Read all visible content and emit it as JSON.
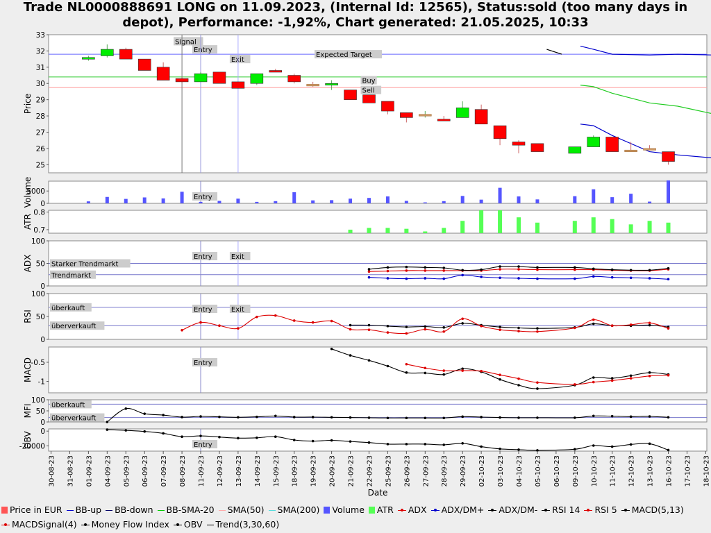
{
  "title": "Trade NL0000888691 LONG on 11.09.2023, (Internal Id: 12565), Status:sold (too many days in depot), Performance: -1,92%, Chart generated: 21.05.2025, 10:33",
  "chart_data": {
    "type": "candlestick-multipanel",
    "xlabel": "Date",
    "dates": [
      "30-08-23",
      "31-08-23",
      "01-09-23",
      "04-09-23",
      "05-09-23",
      "06-09-23",
      "07-09-23",
      "08-09-23",
      "11-09-23",
      "12-09-23",
      "13-09-23",
      "14-09-23",
      "15-09-23",
      "18-09-23",
      "19-09-23",
      "20-09-23",
      "21-09-23",
      "22-09-23",
      "25-09-23",
      "26-09-23",
      "27-09-23",
      "28-09-23",
      "29-09-23",
      "02-10-23",
      "03-10-23",
      "04-10-23",
      "05-10-23",
      "06-10-23",
      "09-10-23",
      "10-10-23",
      "11-10-23",
      "12-10-23",
      "13-10-23",
      "16-10-23",
      "17-10-23",
      "18-10-23"
    ],
    "price": {
      "ylabel": "Price",
      "ylim": [
        24.5,
        33
      ],
      "yticks": [
        25,
        26,
        27,
        28,
        29,
        30,
        31,
        32,
        33
      ],
      "candles": [
        {
          "d": "01-09-23",
          "o": 31.5,
          "c": 31.6,
          "h": 31.7,
          "l": 31.4
        },
        {
          "d": "04-09-23",
          "o": 31.7,
          "c": 32.1,
          "h": 32.4,
          "l": 31.6
        },
        {
          "d": "05-09-23",
          "o": 32.1,
          "c": 31.5,
          "h": 32.2,
          "l": 31.5
        },
        {
          "d": "06-09-23",
          "o": 31.5,
          "c": 30.8,
          "h": 31.5,
          "l": 30.8
        },
        {
          "d": "07-09-23",
          "o": 31.0,
          "c": 30.2,
          "h": 31.3,
          "l": 30.2
        },
        {
          "d": "08-09-23",
          "o": 30.3,
          "c": 30.1,
          "h": 30.4,
          "l": 30.0
        },
        {
          "d": "11-09-23",
          "o": 30.1,
          "c": 30.6,
          "h": 30.7,
          "l": 30.1
        },
        {
          "d": "12-09-23",
          "o": 30.7,
          "c": 30.0,
          "h": 30.7,
          "l": 30.0
        },
        {
          "d": "13-09-23",
          "o": 30.1,
          "c": 29.7,
          "h": 30.1,
          "l": 29.7
        },
        {
          "d": "14-09-23",
          "o": 30.0,
          "c": 30.6,
          "h": 30.6,
          "l": 29.9
        },
        {
          "d": "15-09-23",
          "o": 30.8,
          "c": 30.7,
          "h": 30.9,
          "l": 30.7
        },
        {
          "d": "18-09-23",
          "o": 30.5,
          "c": 30.1,
          "h": 30.6,
          "l": 30.0
        },
        {
          "d": "19-09-23",
          "o": 29.95,
          "c": 29.9,
          "h": 30.1,
          "l": 29.8
        },
        {
          "d": "20-09-23",
          "o": 29.9,
          "c": 30.0,
          "h": 30.2,
          "l": 29.6
        },
        {
          "d": "21-09-23",
          "o": 29.6,
          "c": 29.0,
          "h": 29.6,
          "l": 29.0
        },
        {
          "d": "22-09-23",
          "o": 29.3,
          "c": 28.8,
          "h": 29.3,
          "l": 28.8
        },
        {
          "d": "25-09-23",
          "o": 28.9,
          "c": 28.3,
          "h": 28.9,
          "l": 28.1
        },
        {
          "d": "26-09-23",
          "o": 28.2,
          "c": 27.9,
          "h": 28.2,
          "l": 27.6
        },
        {
          "d": "27-09-23",
          "o": 28.05,
          "c": 28.1,
          "h": 28.3,
          "l": 27.9
        },
        {
          "d": "28-09-23",
          "o": 27.8,
          "c": 27.7,
          "h": 28.0,
          "l": 27.7
        },
        {
          "d": "29-09-23",
          "o": 27.9,
          "c": 28.5,
          "h": 28.9,
          "l": 27.9
        },
        {
          "d": "02-10-23",
          "o": 28.4,
          "c": 27.5,
          "h": 28.7,
          "l": 27.5
        },
        {
          "d": "03-10-23",
          "o": 27.4,
          "c": 26.6,
          "h": 27.4,
          "l": 26.2
        },
        {
          "d": "04-10-23",
          "o": 26.4,
          "c": 26.2,
          "h": 26.5,
          "l": 25.7
        },
        {
          "d": "05-10-23",
          "o": 26.3,
          "c": 25.8,
          "h": 26.3,
          "l": 25.8
        },
        {
          "d": "09-10-23",
          "o": 25.7,
          "c": 26.1,
          "h": 26.1,
          "l": 25.7
        },
        {
          "d": "10-10-23",
          "o": 26.1,
          "c": 26.7,
          "h": 26.8,
          "l": 26.1
        },
        {
          "d": "11-10-23",
          "o": 26.7,
          "c": 25.8,
          "h": 26.7,
          "l": 25.8
        },
        {
          "d": "12-10-23",
          "o": 25.9,
          "c": 25.8,
          "h": 26.4,
          "l": 25.8
        },
        {
          "d": "13-10-23",
          "o": 26.0,
          "c": 25.95,
          "h": 26.2,
          "l": 25.9
        },
        {
          "d": "16-10-23",
          "o": 25.8,
          "c": 25.2,
          "h": 25.8,
          "l": 25.0
        }
      ],
      "bb_up": [
        [
          28.3,
          32.3
        ],
        [
          29,
          32.1
        ],
        [
          30,
          31.8
        ],
        [
          32,
          31.75
        ],
        [
          33.5,
          31.8
        ],
        [
          35.5,
          31.75
        ],
        [
          37,
          31.55
        ],
        [
          38.5,
          31.45
        ],
        [
          39.5,
          31.0
        ],
        [
          40.5,
          30.6
        ]
      ],
      "bb_down": [
        [
          28.3,
          27.5
        ],
        [
          29,
          27.4
        ],
        [
          30,
          26.8
        ],
        [
          32,
          25.8
        ],
        [
          33.5,
          25.6
        ],
        [
          35.5,
          25.4
        ],
        [
          37,
          24.8
        ],
        [
          38.5,
          24.6
        ],
        [
          39.5,
          24.5
        ],
        [
          40.5,
          24.3
        ]
      ],
      "bb_sma20": [
        [
          28.3,
          29.9
        ],
        [
          29,
          29.8
        ],
        [
          30,
          29.4
        ],
        [
          32,
          28.8
        ],
        [
          33.5,
          28.6
        ],
        [
          35.5,
          28.1
        ],
        [
          37,
          27.8
        ],
        [
          38.5,
          27.5
        ]
      ],
      "trend": [
        [
          26.5,
          32.1
        ],
        [
          27.3,
          31.8
        ]
      ],
      "hlines": [
        {
          "y": 31.8,
          "label": "Expected Target",
          "color": "#6666ff"
        },
        {
          "y": 30.4,
          "color": "#33cc33"
        },
        {
          "y": 29.75,
          "color": "#ff9999"
        }
      ],
      "markers": [
        {
          "label": "Signal",
          "x": "08-09-23",
          "y": 32.6
        },
        {
          "label": "Entry",
          "x": "11-09-23",
          "y": 32.1
        },
        {
          "label": "Exit",
          "x": "13-09-23",
          "y": 31.5
        },
        {
          "label": "Buy",
          "x": "22-09-23",
          "y": 30.2
        },
        {
          "label": "Sell",
          "x": "22-09-23",
          "y": 29.6
        }
      ]
    },
    "volume": {
      "ylabel": "Volume",
      "ylim": [
        0,
        9000
      ],
      "yticks": [
        0,
        5000
      ],
      "values": [
        0,
        0,
        800,
        2600,
        1800,
        2400,
        2000,
        4700,
        600,
        1000,
        1900,
        600,
        900,
        4500,
        1200,
        1300,
        1900,
        2200,
        2800,
        1000,
        400,
        900,
        3000,
        1500,
        6300,
        2800,
        1600,
        0,
        2900,
        5700,
        2500,
        3900,
        700,
        9300,
        0,
        0
      ],
      "markers": [
        {
          "label": "Entry",
          "x": "11-09-23"
        }
      ]
    },
    "atr": {
      "ylabel": "ATR",
      "ylim": [
        0.68,
        0.81
      ],
      "yticks": [
        0.7,
        0.8
      ],
      "values": [
        null,
        null,
        null,
        null,
        null,
        null,
        null,
        null,
        null,
        null,
        null,
        null,
        null,
        null,
        null,
        null,
        0.7,
        0.71,
        0.71,
        0.705,
        0.69,
        0.71,
        0.75,
        0.81,
        0.81,
        0.77,
        0.74,
        null,
        0.75,
        0.77,
        0.76,
        0.73,
        0.75,
        0.74,
        null,
        null
      ]
    },
    "adx": {
      "ylabel": "ADX",
      "ylim": [
        0,
        100
      ],
      "yticks": [
        0,
        50,
        100
      ],
      "hlines": [
        {
          "y": 50,
          "label": "Starker Trendmarkt"
        },
        {
          "y": 25,
          "label": "Trendmarkt"
        }
      ],
      "series": [
        {
          "name": "ADX",
          "color": "#dd0000",
          "values": [
            null,
            null,
            null,
            null,
            null,
            null,
            null,
            null,
            null,
            null,
            null,
            null,
            null,
            null,
            null,
            null,
            null,
            32,
            33,
            34,
            34,
            34,
            34,
            34,
            37,
            37,
            36,
            null,
            36,
            36,
            35,
            34,
            34,
            37,
            null,
            null
          ]
        },
        {
          "name": "ADX/DM+",
          "color": "#0000cc",
          "values": [
            null,
            null,
            null,
            null,
            null,
            null,
            null,
            null,
            null,
            null,
            null,
            null,
            null,
            null,
            null,
            null,
            null,
            19,
            17,
            16,
            17,
            16,
            24,
            20,
            18,
            17,
            16,
            null,
            16,
            21,
            19,
            18,
            17,
            15,
            null,
            null
          ]
        },
        {
          "name": "ADX/DM-",
          "color": "#000000",
          "values": [
            null,
            null,
            null,
            null,
            null,
            null,
            null,
            null,
            null,
            null,
            null,
            null,
            null,
            null,
            null,
            null,
            null,
            37,
            41,
            42,
            41,
            40,
            35,
            36,
            43,
            43,
            41,
            null,
            41,
            38,
            36,
            35,
            35,
            39,
            null,
            null
          ]
        }
      ],
      "markers": [
        {
          "label": "Entry",
          "x": "11-09-23"
        },
        {
          "label": "Exit",
          "x": "13-09-23"
        }
      ]
    },
    "rsi": {
      "ylabel": "RSI",
      "ylim": [
        0,
        100
      ],
      "yticks": [
        0,
        50,
        100
      ],
      "hlines": [
        {
          "y": 70,
          "label": "überkauft"
        },
        {
          "y": 30,
          "label": "überverkauft"
        }
      ],
      "series": [
        {
          "name": "RSI 14",
          "color": "#000000",
          "values": [
            null,
            null,
            null,
            null,
            null,
            null,
            null,
            null,
            null,
            null,
            null,
            null,
            null,
            null,
            null,
            null,
            31,
            31,
            29,
            27,
            28,
            26,
            35,
            31,
            27,
            25,
            24,
            null,
            26,
            34,
            30,
            30,
            31,
            27,
            null,
            null
          ]
        },
        {
          "name": "RSI 5",
          "color": "#dd0000",
          "values": [
            null,
            null,
            null,
            null,
            null,
            null,
            null,
            20,
            37,
            30,
            24,
            49,
            52,
            41,
            37,
            40,
            22,
            21,
            15,
            13,
            22,
            17,
            45,
            29,
            21,
            18,
            17,
            null,
            25,
            43,
            30,
            32,
            36,
            24,
            null,
            null
          ]
        }
      ],
      "markers": [
        {
          "label": "Entry",
          "x": "11-09-23"
        },
        {
          "label": "Exit",
          "x": "13-09-23"
        }
      ]
    },
    "macd": {
      "ylabel": "MACD",
      "ylim": [
        -1.3,
        -0.1
      ],
      "yticks": [
        -1,
        -0.5
      ],
      "series": [
        {
          "name": "MACD(5,13)",
          "color": "#000000",
          "values": [
            null,
            null,
            null,
            null,
            null,
            null,
            null,
            null,
            null,
            null,
            null,
            null,
            null,
            null,
            null,
            -0.15,
            -0.32,
            -0.45,
            -0.6,
            -0.77,
            -0.78,
            -0.82,
            -0.67,
            -0.75,
            -0.95,
            -1.1,
            -1.19,
            null,
            -1.1,
            -0.9,
            -0.92,
            -0.85,
            -0.77,
            -0.82,
            null,
            null
          ]
        },
        {
          "name": "MACDSignal(4)",
          "color": "#dd0000",
          "values": [
            null,
            null,
            null,
            null,
            null,
            null,
            null,
            null,
            null,
            null,
            null,
            null,
            null,
            null,
            null,
            null,
            null,
            null,
            null,
            -0.55,
            -0.65,
            -0.72,
            -0.72,
            -0.73,
            -0.83,
            -0.93,
            -1.03,
            null,
            -1.08,
            -1.02,
            -0.98,
            -0.92,
            -0.86,
            -0.84,
            null,
            null
          ]
        }
      ],
      "markers": [
        {
          "label": "Entry",
          "x": "11-09-23"
        }
      ]
    },
    "mfi": {
      "ylabel": "MFI",
      "ylim": [
        0,
        100
      ],
      "yticks": [
        0,
        50,
        100
      ],
      "hlines": [
        {
          "y": 80,
          "label": "überkauft"
        },
        {
          "y": 20,
          "label": "überverkauft"
        }
      ],
      "series": [
        {
          "name": "Money Flow Index",
          "color": "#000000",
          "values": [
            null,
            null,
            null,
            0,
            60,
            37,
            31,
            22,
            25,
            23,
            21,
            23,
            27,
            22,
            22,
            21,
            20,
            19,
            18,
            18,
            18,
            18,
            24,
            22,
            20,
            19,
            19,
            null,
            19,
            27,
            26,
            24,
            25,
            21,
            null,
            null
          ]
        }
      ]
    },
    "obv": {
      "ylabel": "OBV",
      "ylim": [
        -27000,
        3000
      ],
      "yticks": [
        -20000,
        0
      ],
      "series": [
        {
          "name": "OBV",
          "color": "#000000",
          "values": [
            null,
            null,
            null,
            2000,
            1000,
            -500,
            -3000,
            -7500,
            -6500,
            -8000,
            -9500,
            -9000,
            -7500,
            -12000,
            -13500,
            -12500,
            -14000,
            -15500,
            -17500,
            -17500,
            -17500,
            -18500,
            -16500,
            -21000,
            -24000,
            -25000,
            -26000,
            null,
            -24500,
            -19500,
            -21000,
            -18000,
            -17000,
            -25500,
            null,
            null
          ]
        }
      ],
      "markers": [
        {
          "label": "Entry",
          "x": "11-09-23"
        }
      ]
    },
    "legend": [
      {
        "label": "Price in EUR",
        "color": "#ff5555",
        "kind": "swatch"
      },
      {
        "label": "BB-up",
        "color": "#0000cc",
        "kind": "line"
      },
      {
        "label": "BB-down",
        "color": "#000066",
        "kind": "line"
      },
      {
        "label": "BB-SMA-20",
        "color": "#00cc00",
        "kind": "line"
      },
      {
        "label": "SMA(50)",
        "color": "#ffaaaa",
        "kind": "line"
      },
      {
        "label": "SMA(200)",
        "color": "#55dddd",
        "kind": "line"
      },
      {
        "label": "Volume",
        "color": "#5555ff",
        "kind": "swatch"
      },
      {
        "label": "ATR",
        "color": "#55ff55",
        "kind": "swatch"
      },
      {
        "label": "ADX",
        "color": "#dd0000",
        "kind": "marker"
      },
      {
        "label": "ADX/DM+",
        "color": "#0000cc",
        "kind": "marker"
      },
      {
        "label": "ADX/DM-",
        "color": "#000000",
        "kind": "marker"
      },
      {
        "label": "RSI 14",
        "color": "#000000",
        "kind": "marker"
      },
      {
        "label": "RSI 5",
        "color": "#dd0000",
        "kind": "marker"
      },
      {
        "label": "MACD(5,13)",
        "color": "#000000",
        "kind": "marker"
      },
      {
        "label": "MACDSignal(4)",
        "color": "#dd0000",
        "kind": "marker"
      },
      {
        "label": "Money Flow Index",
        "color": "#000000",
        "kind": "marker"
      },
      {
        "label": "OBV",
        "color": "#000000",
        "kind": "marker"
      },
      {
        "label": "Trend(3,30,60)",
        "color": "#000000",
        "kind": "line"
      }
    ]
  }
}
